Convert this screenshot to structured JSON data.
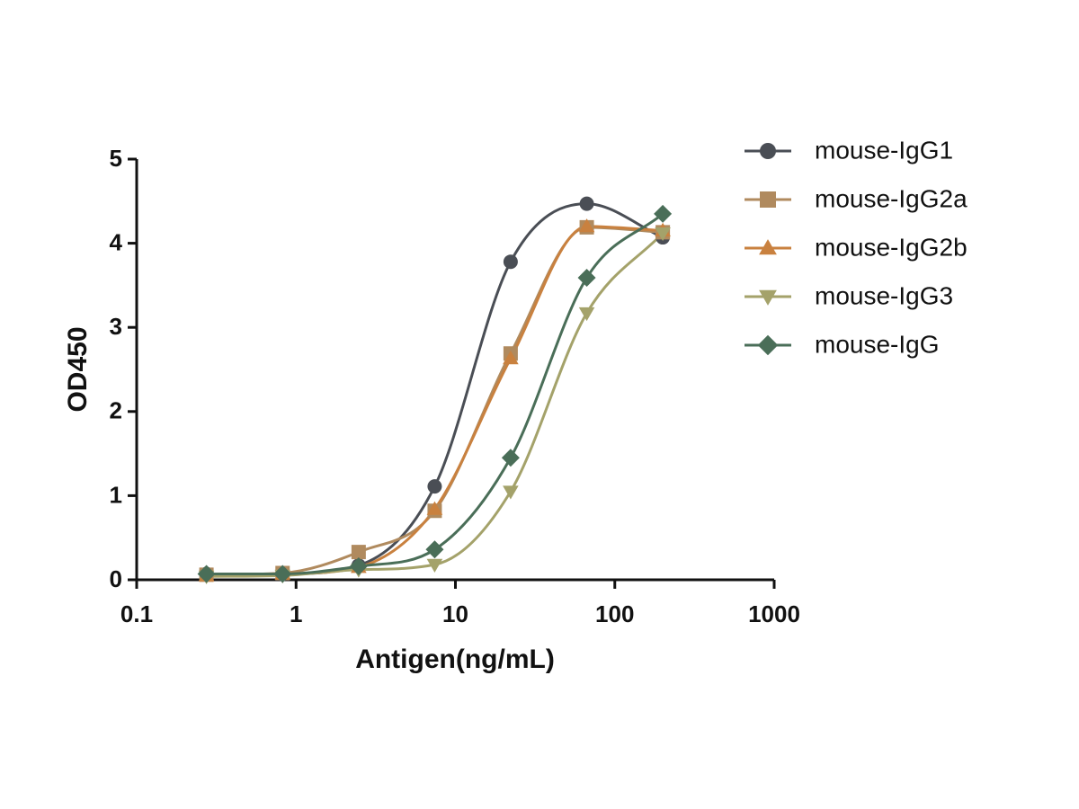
{
  "chart_data": {
    "type": "scatter",
    "xlabel": "Antigen(ng/mL)",
    "ylabel": "OD450",
    "x": [
      0.274,
      0.823,
      2.47,
      7.41,
      22.2,
      66.7,
      200
    ],
    "series": [
      {
        "name": "mouse-IgG1",
        "color": "#4a4e55",
        "marker": "circle",
        "values": [
          0.07,
          0.07,
          0.17,
          1.11,
          3.78,
          4.47,
          4.07
        ]
      },
      {
        "name": "mouse-IgG2a",
        "color": "#b08a5e",
        "marker": "square",
        "values": [
          0.06,
          0.08,
          0.33,
          0.82,
          2.69,
          4.19,
          4.13
        ]
      },
      {
        "name": "mouse-IgG2b",
        "color": "#c9813f",
        "marker": "triangle",
        "values": [
          0.05,
          0.07,
          0.15,
          0.84,
          2.63,
          4.2,
          4.15
        ]
      },
      {
        "name": "mouse-IgG3",
        "color": "#a4a26a",
        "marker": "triangle-down",
        "values": [
          0.04,
          0.05,
          0.12,
          0.18,
          1.05,
          3.17,
          4.12
        ]
      },
      {
        "name": "mouse-IgG",
        "color": "#4a6e58",
        "marker": "diamond",
        "values": [
          0.07,
          0.07,
          0.16,
          0.36,
          1.45,
          3.59,
          4.35
        ]
      }
    ],
    "xscale": "log",
    "xlim": [
      0.1,
      1000
    ],
    "xticks": [
      0.1,
      1,
      10,
      100,
      1000
    ],
    "ylim": [
      0,
      5
    ],
    "yticks": [
      0,
      1,
      2,
      3,
      4,
      5
    ],
    "grid": false,
    "legend": "right"
  }
}
